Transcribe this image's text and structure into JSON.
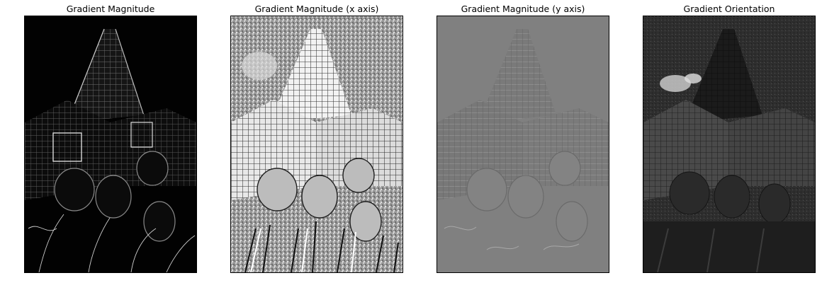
{
  "figure": {
    "panels": [
      {
        "title": "Gradient Magnitude",
        "image": "gradient-magnitude-image"
      },
      {
        "title": "Gradient Magnitude (x axis)",
        "image": "gradient-x-image"
      },
      {
        "title": "Gradient Magnitude (y axis)",
        "image": "gradient-y-image"
      },
      {
        "title": "Gradient Orientation",
        "image": "gradient-orientation-image"
      }
    ],
    "subject": "skyscraper-with-tulips"
  }
}
